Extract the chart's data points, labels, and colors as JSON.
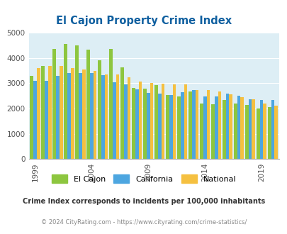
{
  "title": "El Cajon Property Crime Index",
  "title_color": "#1060a0",
  "years": [
    1999,
    2000,
    2001,
    2002,
    2003,
    2004,
    2005,
    2006,
    2007,
    2008,
    2009,
    2010,
    2011,
    2012,
    2013,
    2014,
    2015,
    2016,
    2017,
    2018,
    2019,
    2020
  ],
  "el_cajon": [
    3300,
    3700,
    4350,
    4560,
    4490,
    4330,
    3900,
    4360,
    3640,
    2820,
    2780,
    2940,
    2540,
    2480,
    2670,
    2200,
    2180,
    2330,
    2210,
    2150,
    2000,
    2050
  ],
  "california": [
    3100,
    3100,
    3300,
    3400,
    3420,
    3400,
    3310,
    3050,
    2950,
    2750,
    2630,
    2600,
    2540,
    2640,
    2720,
    2480,
    2470,
    2590,
    2510,
    2380,
    2340,
    2330
  ],
  "national": [
    3600,
    3680,
    3680,
    3600,
    3550,
    3500,
    3340,
    3340,
    3230,
    3060,
    3010,
    2990,
    2970,
    2960,
    2740,
    2730,
    2680,
    2570,
    2460,
    2360,
    2200,
    2110
  ],
  "el_cajon_color": "#8dc63f",
  "california_color": "#4da6e0",
  "national_color": "#f5c040",
  "bg_color": "#ddeef5",
  "ylim": [
    0,
    5000
  ],
  "yticks": [
    0,
    1000,
    2000,
    3000,
    4000,
    5000
  ],
  "xticks": [
    1999,
    2004,
    2009,
    2014,
    2019
  ],
  "footer_line1": "Crime Index corresponds to incidents per 100,000 inhabitants",
  "footer_line2": "© 2024 CityRating.com - https://www.cityrating.com/crime-statistics/",
  "footer_color1": "#333333",
  "footer_color2": "#888888"
}
